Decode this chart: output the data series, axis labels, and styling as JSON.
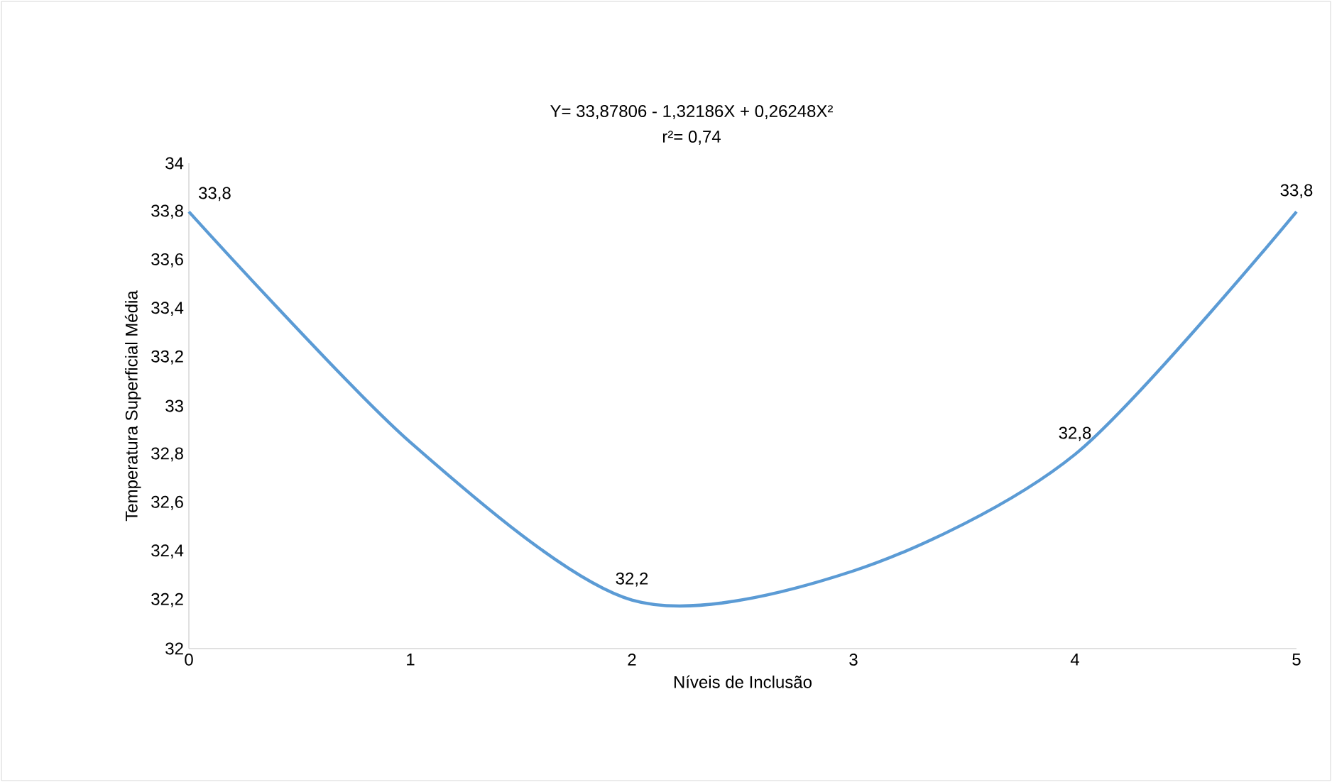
{
  "chart_data": {
    "type": "line",
    "x": [
      0,
      1,
      2,
      3,
      4,
      5
    ],
    "series": [
      {
        "color": "#5b9bd5",
        "values": [
          33.8,
          32.85,
          32.2,
          32.32,
          32.8,
          33.8
        ],
        "value_labels": [
          "33,8",
          null,
          "32,2",
          null,
          "32,8",
          "33,8"
        ]
      }
    ],
    "xlabel": "Níveis de Inclusão",
    "ylabel": "Temperatura Superficial Média",
    "annotations": [
      "Y= 33,87806 - 1,32186X + 0,26248X²",
      "r²= 0,74"
    ],
    "xlim": [
      0,
      5
    ],
    "xticks": [
      0,
      1,
      2,
      3,
      4,
      5
    ],
    "ylim": [
      32,
      34
    ],
    "yticks": [
      32,
      {
        "value": 32.2,
        "label": "32,2"
      },
      {
        "value": 32.4,
        "label": "32,4"
      },
      {
        "value": 32.6,
        "label": "32,6"
      },
      {
        "value": 32.8,
        "label": "32,8"
      },
      33,
      {
        "value": 33.2,
        "label": "33,2"
      },
      {
        "value": 33.4,
        "label": "33,4"
      },
      {
        "value": 33.6,
        "label": "33,6"
      },
      {
        "value": 33.8,
        "label": "33,8"
      },
      34
    ],
    "grid": false,
    "marker": "none",
    "line_style": "solid"
  }
}
